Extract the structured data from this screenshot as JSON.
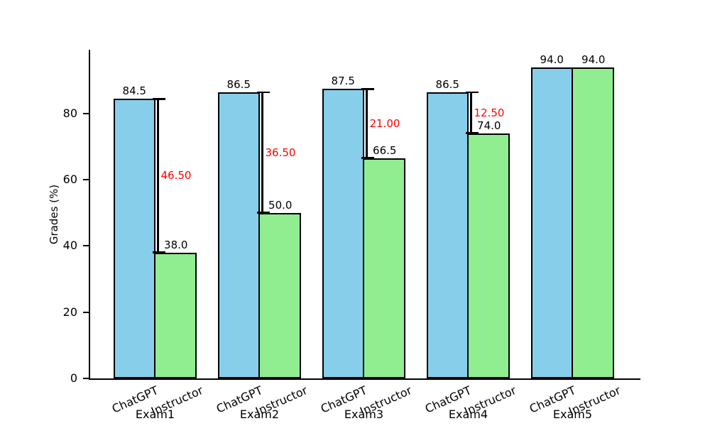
{
  "chart_data": {
    "type": "bar",
    "title": "",
    "xlabel": "",
    "ylabel": "Grades (%)",
    "categories": [
      "Exam1",
      "Exam2",
      "Exam3",
      "Exam4",
      "Exam5"
    ],
    "series": [
      {
        "name": "ChatGPT",
        "color": "#87CEEB",
        "values": [
          84.5,
          86.5,
          87.5,
          86.5,
          94.0
        ],
        "value_labels": [
          "84.5",
          "86.5",
          "87.5",
          "86.5",
          "94.0"
        ]
      },
      {
        "name": "Instructor",
        "color": "#90EE90",
        "values": [
          38.0,
          50.0,
          66.5,
          74.0,
          94.0
        ],
        "value_labels": [
          "38.0",
          "50.0",
          "66.5",
          "74.0",
          "94.0"
        ]
      }
    ],
    "differences": {
      "color": "#FF0000",
      "values": [
        46.5,
        36.5,
        21.0,
        12.5,
        null
      ],
      "labels": [
        "46.50",
        "36.50",
        "21.00",
        "12.50",
        null
      ]
    },
    "bar_edge_color": "#000000",
    "axis_color": "#000000",
    "yticks": [
      0,
      20,
      40,
      60,
      80
    ],
    "ylim": [
      0,
      99.3
    ],
    "grid": false,
    "legend": "none",
    "xtick_rotation_deg": 24
  }
}
